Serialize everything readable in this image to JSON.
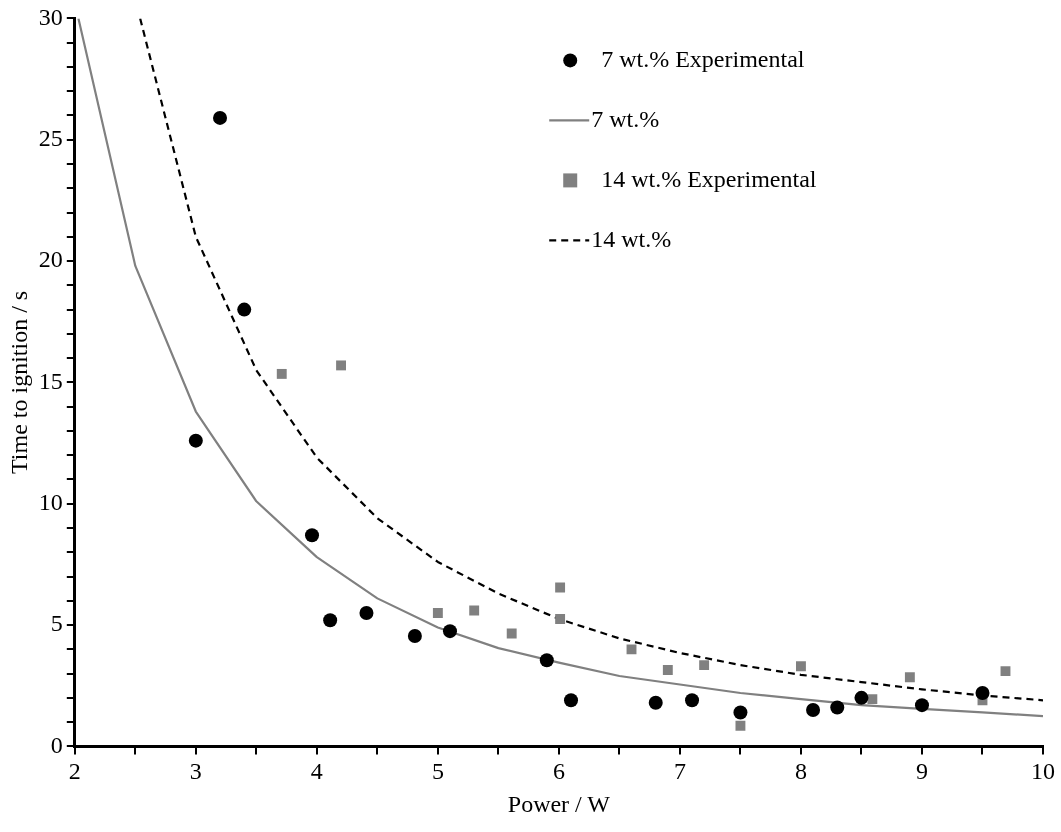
{
  "chart_data": {
    "type": "scatter",
    "xlabel": "Power / W",
    "ylabel": "Time to ignition / s",
    "xlim": [
      2,
      10
    ],
    "ylim": [
      0,
      30
    ],
    "xticks": [
      2,
      {
        "value": 2.5,
        "label": null
      },
      3,
      {
        "value": 3.5,
        "label": null
      },
      4,
      {
        "value": 4.5,
        "label": null
      },
      5,
      {
        "value": 5.5,
        "label": null
      },
      6,
      {
        "value": 6.5,
        "label": null
      },
      7,
      {
        "value": 7.5,
        "label": null
      },
      8,
      {
        "value": 8.5,
        "label": null
      },
      9,
      {
        "value": 9.5,
        "label": null
      },
      10
    ],
    "yticks": [
      0,
      {
        "value": 1,
        "label": null
      },
      {
        "value": 2,
        "label": null
      },
      {
        "value": 3,
        "label": null
      },
      {
        "value": 4,
        "label": null
      },
      5,
      {
        "value": 6,
        "label": null
      },
      {
        "value": 7,
        "label": null
      },
      {
        "value": 8,
        "label": null
      },
      {
        "value": 9,
        "label": null
      },
      10,
      {
        "value": 11,
        "label": null
      },
      {
        "value": 12,
        "label": null
      },
      {
        "value": 13,
        "label": null
      },
      {
        "value": 14,
        "label": null
      },
      15,
      {
        "value": 16,
        "label": null
      },
      {
        "value": 17,
        "label": null
      },
      {
        "value": 18,
        "label": null
      },
      {
        "value": 19,
        "label": null
      },
      20,
      {
        "value": 21,
        "label": null
      },
      {
        "value": 22,
        "label": null
      },
      {
        "value": 23,
        "label": null
      },
      {
        "value": 24,
        "label": null
      },
      25,
      {
        "value": 26,
        "label": null
      },
      {
        "value": 27,
        "label": null
      },
      {
        "value": 28,
        "label": null
      },
      {
        "value": 29,
        "label": null
      },
      30
    ],
    "grid": false,
    "legend": "top right",
    "series": [
      {
        "name": "7 wt.% Experimental",
        "marker": "circle",
        "color": "#000000",
        "x": [
          3.0,
          3.2,
          3.4,
          3.96,
          4.11,
          4.41,
          4.81,
          5.1,
          5.9,
          6.1,
          6.8,
          7.1,
          7.5,
          8.1,
          8.3,
          8.5,
          9.0,
          9.5
        ],
        "values": [
          12.6,
          25.9,
          18.0,
          8.7,
          5.2,
          5.5,
          4.55,
          4.75,
          3.55,
          1.9,
          1.8,
          1.9,
          1.4,
          1.5,
          1.6,
          2.0,
          1.7,
          2.2
        ]
      },
      {
        "name": "7 wt.%",
        "type": "line",
        "marker": "none",
        "line_style": "solid",
        "color": "#808080",
        "x": [
          2.03,
          2.5,
          3,
          3.5,
          4,
          4.5,
          5,
          5.5,
          6,
          6.5,
          7,
          7.5,
          8,
          8.5,
          9,
          9.5,
          10
        ],
        "values": [
          30,
          19.8,
          13.8,
          10.1,
          7.8,
          6.1,
          4.9,
          4.05,
          3.45,
          2.9,
          2.55,
          2.2,
          1.95,
          1.7,
          1.55,
          1.4,
          1.25
        ]
      },
      {
        "name": "14 wt.% Experimental",
        "marker": "square",
        "color": "#808080",
        "x": [
          3.71,
          4.2,
          5.0,
          5.3,
          5.61,
          6.01,
          6.01,
          6.6,
          6.9,
          7.2,
          7.5,
          8.0,
          8.59,
          8.9,
          9.5,
          9.69
        ],
        "values": [
          15.35,
          15.7,
          5.5,
          5.6,
          4.65,
          6.55,
          5.25,
          4.0,
          3.15,
          3.35,
          0.85,
          3.3,
          1.95,
          2.85,
          1.9,
          3.1
        ]
      },
      {
        "name": "14 wt.%",
        "type": "line",
        "marker": "none",
        "line_style": "dashed",
        "color": "#000000",
        "x": [
          2.54,
          3,
          3.5,
          4,
          4.5,
          5,
          5.5,
          6,
          6.5,
          7,
          7.5,
          8,
          8.5,
          9,
          9.5,
          10
        ],
        "values": [
          30,
          21,
          15.5,
          11.9,
          9.4,
          7.6,
          6.3,
          5.25,
          4.45,
          3.85,
          3.35,
          2.95,
          2.65,
          2.35,
          2.1,
          1.9
        ]
      }
    ]
  }
}
